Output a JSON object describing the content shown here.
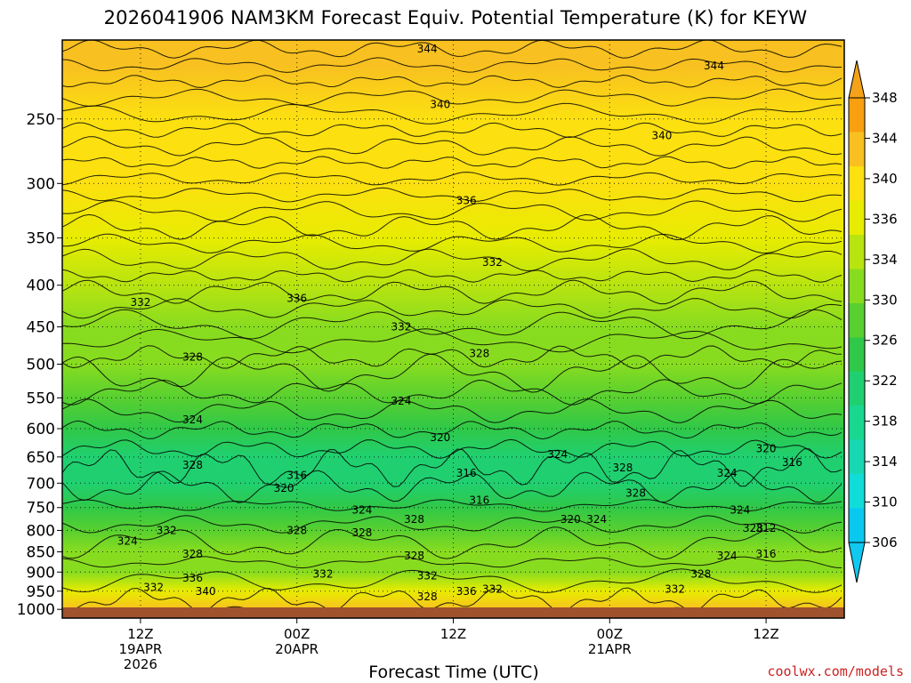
{
  "chart_data": {
    "type": "heatmap",
    "title": "2026041906 NAM3KM Forecast Equiv. Potential Temperature (K) for KEYW",
    "xlabel": "Forecast Time (UTC)",
    "ylabel": "",
    "y_axis": {
      "scale": "log",
      "reversed": true,
      "range": [
        1025,
        200
      ],
      "ticks": [
        250,
        300,
        350,
        400,
        450,
        500,
        550,
        600,
        650,
        700,
        750,
        800,
        850,
        900,
        950,
        1000
      ]
    },
    "x_axis": {
      "range_hours": [
        6,
        66
      ],
      "ticks": [
        {
          "hour": 12,
          "lines": [
            "12Z",
            "19APR",
            "2026"
          ]
        },
        {
          "hour": 24,
          "lines": [
            "00Z",
            "20APR"
          ]
        },
        {
          "hour": 36,
          "lines": [
            "12Z"
          ]
        },
        {
          "hour": 48,
          "lines": [
            "00Z",
            "21APR"
          ]
        },
        {
          "hour": 60,
          "lines": [
            "12Z"
          ]
        }
      ]
    },
    "colorbar": {
      "ticks": [
        306,
        310,
        314,
        318,
        322,
        326,
        330,
        334,
        336,
        340,
        344,
        348
      ],
      "colors": [
        "#08c8f0",
        "#10dcd8",
        "#18d8b4",
        "#18d890",
        "#20d070",
        "#30c848",
        "#58d030",
        "#88dc20",
        "#b8e410",
        "#e8ec00",
        "#fce010",
        "#f8c020",
        "#f8a010"
      ]
    },
    "levels": [
      {
        "p": 215,
        "t": 343
      },
      {
        "p": 250,
        "t": 340
      },
      {
        "p": 300,
        "t": 338
      },
      {
        "p": 350,
        "t": 336
      },
      {
        "p": 400,
        "t": 333
      },
      {
        "p": 450,
        "t": 331
      },
      {
        "p": 500,
        "t": 328
      },
      {
        "p": 550,
        "t": 325
      },
      {
        "p": 600,
        "t": 322
      },
      {
        "p": 650,
        "t": 320
      },
      {
        "p": 700,
        "t": 318
      },
      {
        "p": 750,
        "t": 321
      },
      {
        "p": 800,
        "t": 326
      },
      {
        "p": 850,
        "t": 329
      },
      {
        "p": 900,
        "t": 331
      },
      {
        "p": 950,
        "t": 335
      },
      {
        "p": 1000,
        "t": 342
      }
    ],
    "contour_labels": [
      {
        "text": "344",
        "hour": 34,
        "p": 205
      },
      {
        "text": "344",
        "hour": 56,
        "p": 215
      },
      {
        "text": "340",
        "hour": 35,
        "p": 240
      },
      {
        "text": "340",
        "hour": 52,
        "p": 262
      },
      {
        "text": "336",
        "hour": 37,
        "p": 315
      },
      {
        "text": "336",
        "hour": 24,
        "p": 415
      },
      {
        "text": "332",
        "hour": 39,
        "p": 375
      },
      {
        "text": "332",
        "hour": 12,
        "p": 420
      },
      {
        "text": "332",
        "hour": 32,
        "p": 450
      },
      {
        "text": "328",
        "hour": 38,
        "p": 485
      },
      {
        "text": "328",
        "hour": 16,
        "p": 490
      },
      {
        "text": "324",
        "hour": 16,
        "p": 585
      },
      {
        "text": "324",
        "hour": 32,
        "p": 555
      },
      {
        "text": "320",
        "hour": 35,
        "p": 615
      },
      {
        "text": "320",
        "hour": 60,
        "p": 635
      },
      {
        "text": "316",
        "hour": 24,
        "p": 685
      },
      {
        "text": "316",
        "hour": 37,
        "p": 680
      },
      {
        "text": "316",
        "hour": 62,
        "p": 660
      },
      {
        "text": "320",
        "hour": 23,
        "p": 710
      },
      {
        "text": "324",
        "hour": 29,
        "p": 755
      },
      {
        "text": "316",
        "hour": 38,
        "p": 735
      },
      {
        "text": "328",
        "hour": 16,
        "p": 665
      },
      {
        "text": "324",
        "hour": 44,
        "p": 645
      },
      {
        "text": "328",
        "hour": 49,
        "p": 670
      },
      {
        "text": "324",
        "hour": 57,
        "p": 680
      },
      {
        "text": "328",
        "hour": 50,
        "p": 720
      },
      {
        "text": "324",
        "hour": 58,
        "p": 755
      },
      {
        "text": "328",
        "hour": 33,
        "p": 775
      },
      {
        "text": "328",
        "hour": 29,
        "p": 805
      },
      {
        "text": "320",
        "hour": 45,
        "p": 775
      },
      {
        "text": "324",
        "hour": 47,
        "p": 775
      },
      {
        "text": "328",
        "hour": 24,
        "p": 800
      },
      {
        "text": "332",
        "hour": 14,
        "p": 800
      },
      {
        "text": "324",
        "hour": 11,
        "p": 825
      },
      {
        "text": "328",
        "hour": 16,
        "p": 855
      },
      {
        "text": "328",
        "hour": 59,
        "p": 795
      },
      {
        "text": "312",
        "hour": 60,
        "p": 795
      },
      {
        "text": "328",
        "hour": 33,
        "p": 860
      },
      {
        "text": "324",
        "hour": 57,
        "p": 860
      },
      {
        "text": "316",
        "hour": 60,
        "p": 855
      },
      {
        "text": "332",
        "hour": 26,
        "p": 905
      },
      {
        "text": "332",
        "hour": 34,
        "p": 910
      },
      {
        "text": "336",
        "hour": 16,
        "p": 915
      },
      {
        "text": "328",
        "hour": 55,
        "p": 905
      },
      {
        "text": "332",
        "hour": 13,
        "p": 940
      },
      {
        "text": "340",
        "hour": 17,
        "p": 950
      },
      {
        "text": "336",
        "hour": 37,
        "p": 950
      },
      {
        "text": "332",
        "hour": 39,
        "p": 945
      },
      {
        "text": "332",
        "hour": 53,
        "p": 945
      },
      {
        "text": "328",
        "hour": 34,
        "p": 965
      }
    ]
  },
  "credit": "coolwx.com/models"
}
